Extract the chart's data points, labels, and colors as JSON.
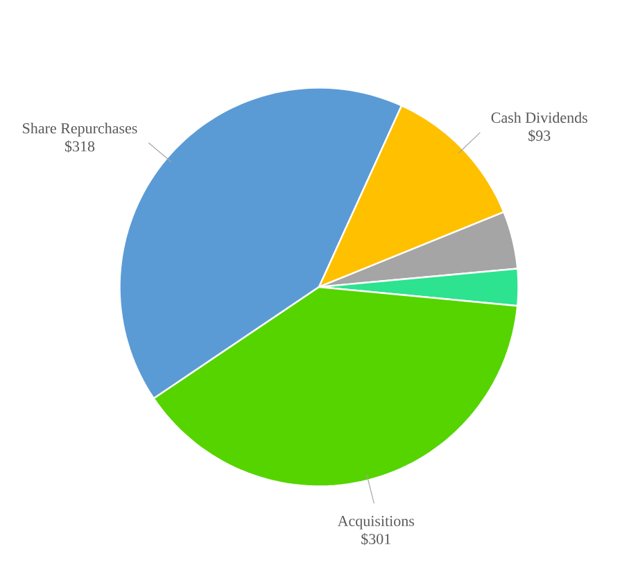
{
  "chart_data": {
    "type": "pie",
    "categories": [
      "Share Repurchases",
      "Cash Dividends",
      null,
      null,
      "Acquisitions"
    ],
    "values": [
      318,
      93,
      36,
      23,
      301
    ],
    "value_labels": [
      "$318",
      "$93",
      null,
      null,
      "$301"
    ],
    "colors": [
      "#5b9bd5",
      "#ffc000",
      "#a5a5a5",
      "#2de38f",
      "#55d400"
    ]
  }
}
